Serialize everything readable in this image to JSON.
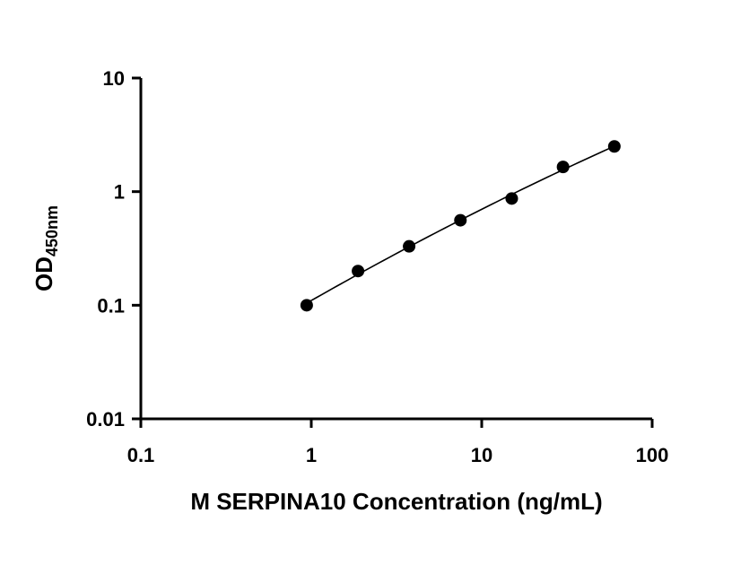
{
  "chart_data": {
    "type": "scatter",
    "title": "",
    "xlabel": "M SERPINA10 Concentration (ng/mL)",
    "ylabel": "OD",
    "ylabel_subscript": "450nm",
    "x_scale": "log",
    "y_scale": "log",
    "xlim": [
      0.1,
      100
    ],
    "ylim": [
      0.01,
      10
    ],
    "x_ticks": [
      0.1,
      1,
      10,
      100
    ],
    "x_tick_labels": [
      "0.1",
      "1",
      "10",
      "100"
    ],
    "y_ticks": [
      0.01,
      0.1,
      1,
      10
    ],
    "y_tick_labels": [
      "0.01",
      "0.1",
      "1",
      "10"
    ],
    "grid": false,
    "legend": false,
    "series": [
      {
        "x": [
          0.94,
          1.88,
          3.75,
          7.5,
          15,
          30,
          60
        ],
        "y": [
          0.1,
          0.2,
          0.33,
          0.56,
          0.87,
          1.65,
          2.5
        ],
        "marker": "circle",
        "fit_line": true,
        "color": "#000000"
      }
    ]
  }
}
